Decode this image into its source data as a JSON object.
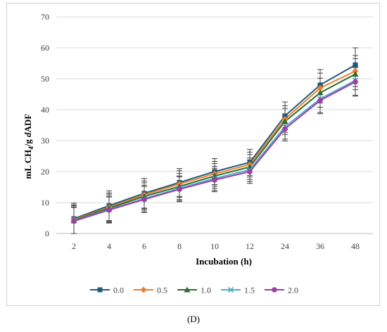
{
  "panel_label": "(D)",
  "chart_data": {
    "type": "line",
    "title": "",
    "xlabel": "Incubation (h)",
    "ylabel": "mL CH4/g dADF",
    "ylim": [
      0,
      70
    ],
    "yticks": [
      0,
      10,
      20,
      30,
      40,
      50,
      60,
      70
    ],
    "categories": [
      "2",
      "4",
      "6",
      "8",
      "10",
      "12",
      "24",
      "36",
      "48"
    ],
    "grid": "horizontal",
    "legend_position": "bottom",
    "series": [
      {
        "name": "0.0",
        "color": "#1f5a7a",
        "marker": "square",
        "values": [
          4.8,
          9.0,
          13.0,
          16.5,
          20.0,
          23.0,
          38.0,
          48.0,
          54.5
        ],
        "error": [
          5.0,
          4.8,
          4.8,
          4.5,
          4.2,
          4.2,
          4.5,
          5.0,
          5.5
        ]
      },
      {
        "name": "0.5",
        "color": "#ed7d31",
        "marker": "diamond",
        "values": [
          4.5,
          8.5,
          12.5,
          16.0,
          19.3,
          22.3,
          37.0,
          47.0,
          52.5
        ],
        "error": [
          4.8,
          4.6,
          4.5,
          4.3,
          4.0,
          4.0,
          4.3,
          4.8,
          5.0
        ]
      },
      {
        "name": "1.0",
        "color": "#2e6b2e",
        "marker": "triangle",
        "values": [
          4.3,
          8.2,
          12.0,
          15.2,
          18.6,
          21.5,
          36.2,
          45.5,
          51.5
        ],
        "error": [
          4.7,
          4.5,
          4.4,
          4.2,
          4.0,
          4.0,
          4.2,
          4.7,
          5.0
        ]
      },
      {
        "name": "1.5",
        "color": "#4bacc6",
        "marker": "x",
        "values": [
          4.1,
          7.8,
          11.3,
          14.6,
          17.8,
          20.6,
          34.5,
          43.5,
          49.5
        ],
        "error": [
          4.5,
          4.3,
          4.3,
          4.0,
          3.9,
          3.8,
          4.0,
          4.4,
          4.8
        ]
      },
      {
        "name": "2.0",
        "color": "#9c3fa6",
        "marker": "circle",
        "values": [
          4.0,
          7.6,
          11.0,
          14.3,
          17.3,
          20.0,
          33.8,
          43.0,
          49.0
        ],
        "error": [
          4.4,
          4.2,
          4.2,
          4.0,
          3.8,
          3.8,
          3.9,
          4.3,
          4.6
        ]
      }
    ]
  }
}
